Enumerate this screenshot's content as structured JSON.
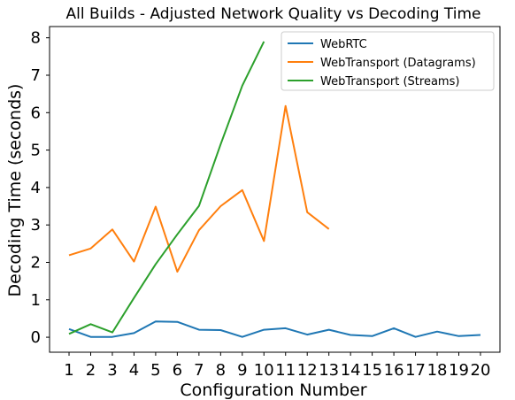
{
  "chart_data": {
    "type": "line",
    "title": "All Builds - Adjusted Network Quality vs Decoding Time",
    "xlabel": "Configuration Number",
    "ylabel": "Decoding Time (seconds)",
    "x": [
      1,
      2,
      3,
      4,
      5,
      6,
      7,
      8,
      9,
      10,
      11,
      12,
      13,
      14,
      15,
      16,
      17,
      18,
      19,
      20
    ],
    "xlim": [
      0.1,
      20.9
    ],
    "ylim": [
      -0.4,
      8.3
    ],
    "yticks": [
      0,
      1,
      2,
      3,
      4,
      5,
      6,
      7,
      8
    ],
    "grid": false,
    "legend_position": "top-right",
    "series": [
      {
        "name": "WebRTC",
        "color": "#1f77b4",
        "x": [
          1,
          2,
          3,
          4,
          5,
          6,
          7,
          8,
          9,
          10,
          11,
          12,
          13,
          14,
          15,
          16,
          17,
          18,
          19,
          20
        ],
        "values": [
          0.22,
          0.01,
          0.01,
          0.11,
          0.42,
          0.41,
          0.2,
          0.19,
          0.01,
          0.2,
          0.24,
          0.07,
          0.2,
          0.06,
          0.03,
          0.24,
          0.01,
          0.15,
          0.03,
          0.06
        ]
      },
      {
        "name": "WebTransport (Datagrams)",
        "color": "#ff7f0e",
        "x": [
          1,
          2,
          3,
          4,
          5,
          6,
          7,
          8,
          9,
          10,
          11,
          12,
          13
        ],
        "values": [
          2.19,
          2.37,
          2.88,
          2.02,
          3.49,
          1.75,
          2.86,
          3.5,
          3.93,
          2.57,
          6.18,
          3.34,
          2.89
        ]
      },
      {
        "name": "WebTransport (Streams)",
        "color": "#2ca02c",
        "x": [
          1,
          2,
          3,
          4,
          5,
          6,
          7,
          8,
          9,
          10
        ],
        "values": [
          0.09,
          0.35,
          0.13,
          1.05,
          1.95,
          2.75,
          3.51,
          5.15,
          6.72,
          7.9
        ]
      }
    ]
  }
}
